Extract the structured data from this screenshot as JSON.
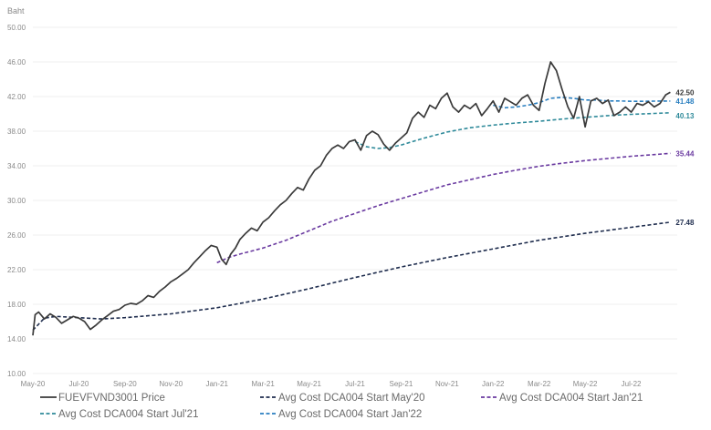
{
  "chart_data": {
    "type": "line",
    "ylabel": "Baht",
    "ylim": [
      10,
      50
    ],
    "yticks": [
      "10.00",
      "14.00",
      "18.00",
      "22.00",
      "26.00",
      "30.00",
      "34.00",
      "38.00",
      "42.00",
      "46.00",
      "50.00"
    ],
    "ytick_values": [
      10,
      14,
      18,
      22,
      26,
      30,
      34,
      38,
      42,
      46,
      50
    ],
    "xrange": [
      0,
      28
    ],
    "xticks": [
      "May-20",
      "Jul-20",
      "Sep-20",
      "Nov-20",
      "Jan-21",
      "Mar-21",
      "May-21",
      "Jul-21",
      "Sep-21",
      "Nov-21",
      "Jan-22",
      "Mar-22",
      "May-22",
      "Jul-22"
    ],
    "xtick_values": [
      0,
      2,
      4,
      6,
      8,
      10,
      12,
      14,
      16,
      18,
      20,
      22,
      24,
      26
    ],
    "series": [
      {
        "name": "FUEVFVND3001 Price",
        "color": "#3a3a3a",
        "dash": "solid",
        "end_label": "42.50",
        "x": [
          0,
          0.1,
          0.25,
          0.5,
          0.75,
          1,
          1.25,
          1.5,
          1.75,
          2,
          2.25,
          2.5,
          2.75,
          3,
          3.25,
          3.5,
          3.75,
          4,
          4.25,
          4.5,
          4.75,
          5,
          5.25,
          5.5,
          5.75,
          6,
          6.25,
          6.5,
          6.75,
          7,
          7.25,
          7.5,
          7.75,
          8,
          8.2,
          8.4,
          8.6,
          8.8,
          9,
          9.25,
          9.5,
          9.75,
          10,
          10.25,
          10.5,
          10.75,
          11,
          11.25,
          11.5,
          11.75,
          12,
          12.25,
          12.5,
          12.75,
          13,
          13.25,
          13.5,
          13.75,
          14,
          14.25,
          14.5,
          14.75,
          15,
          15.25,
          15.5,
          15.75,
          16,
          16.25,
          16.5,
          16.75,
          17,
          17.25,
          17.5,
          17.75,
          18,
          18.25,
          18.5,
          18.75,
          19,
          19.25,
          19.5,
          19.75,
          20,
          20.25,
          20.5,
          20.75,
          21,
          21.25,
          21.5,
          21.75,
          22,
          22.25,
          22.5,
          22.75,
          23,
          23.25,
          23.5,
          23.75,
          24,
          24.25,
          24.5,
          24.75,
          25,
          25.25,
          25.5,
          25.75,
          26,
          26.25,
          26.5,
          26.75,
          27,
          27.25,
          27.5,
          27.7
        ],
        "y": [
          14.4,
          16.8,
          17.1,
          16.3,
          16.9,
          16.5,
          15.8,
          16.2,
          16.6,
          16.4,
          16.0,
          15.1,
          15.6,
          16.2,
          16.7,
          17.2,
          17.4,
          17.9,
          18.1,
          18.0,
          18.4,
          19.0,
          18.8,
          19.5,
          20.0,
          20.6,
          21.0,
          21.5,
          22.0,
          22.8,
          23.5,
          24.2,
          24.8,
          24.6,
          23.2,
          22.6,
          23.8,
          24.5,
          25.5,
          26.2,
          26.8,
          26.5,
          27.5,
          28.0,
          28.8,
          29.5,
          30.0,
          30.8,
          31.5,
          31.2,
          32.5,
          33.5,
          34.0,
          35.2,
          36.0,
          36.4,
          36.0,
          36.8,
          37.0,
          35.8,
          37.5,
          38.0,
          37.6,
          36.5,
          35.8,
          36.6,
          37.2,
          37.8,
          39.5,
          40.2,
          39.6,
          41.0,
          40.6,
          41.8,
          42.4,
          40.8,
          40.2,
          41.0,
          40.6,
          41.2,
          39.8,
          40.6,
          41.5,
          40.2,
          41.8,
          41.4,
          41.0,
          41.8,
          42.2,
          41.0,
          40.4,
          43.5,
          46.0,
          45.0,
          42.8,
          40.8,
          39.5,
          42.0,
          38.5,
          41.5,
          41.8,
          41.2,
          41.6,
          39.8,
          40.2,
          40.8,
          40.2,
          41.2,
          41.0,
          41.4,
          40.8,
          41.2,
          42.2,
          42.5
        ]
      },
      {
        "name": "Avg Cost DCA004 Start May'20",
        "color": "#1f2d4e",
        "dash": "dashed",
        "end_label": "27.48",
        "x": [
          0,
          0.5,
          1,
          2,
          3,
          4,
          6,
          8,
          10,
          12,
          14,
          16,
          18,
          20,
          22,
          24,
          26,
          27.7
        ],
        "y": [
          15.0,
          16.4,
          16.6,
          16.45,
          16.3,
          16.45,
          16.9,
          17.6,
          18.6,
          19.8,
          21.1,
          22.3,
          23.4,
          24.4,
          25.4,
          26.2,
          26.9,
          27.48
        ]
      },
      {
        "name": "Avg Cost DCA004 Start Jan'21",
        "color": "#6a3aa0",
        "dash": "dashed",
        "end_label": "35.44",
        "x": [
          8,
          8.5,
          9,
          10,
          11,
          12,
          13,
          14,
          15,
          16,
          17,
          18,
          19,
          20,
          21,
          22,
          23,
          24,
          25,
          26,
          27,
          27.7
        ],
        "y": [
          22.8,
          23.4,
          23.8,
          24.5,
          25.4,
          26.5,
          27.6,
          28.5,
          29.4,
          30.2,
          31.0,
          31.8,
          32.4,
          33.0,
          33.5,
          33.95,
          34.3,
          34.6,
          34.85,
          35.1,
          35.3,
          35.44
        ]
      },
      {
        "name": "Avg Cost DCA004 Start Jul'21",
        "color": "#2f8a9a",
        "dash": "dashed",
        "end_label": "40.13",
        "x": [
          14,
          14.5,
          15,
          15.5,
          16,
          17,
          18,
          19,
          20,
          21,
          22,
          23,
          24,
          25,
          26,
          27,
          27.7
        ],
        "y": [
          36.8,
          36.2,
          36.0,
          36.1,
          36.4,
          37.2,
          37.9,
          38.4,
          38.7,
          38.95,
          39.15,
          39.4,
          39.6,
          39.8,
          39.95,
          40.05,
          40.13
        ]
      },
      {
        "name": "Avg Cost DCA004 Start Jan'22",
        "color": "#2a7fc0",
        "dash": "dashed",
        "end_label": "41.48",
        "x": [
          20,
          20.5,
          21,
          21.5,
          22,
          22.5,
          23,
          23.5,
          24,
          24.5,
          25,
          25.5,
          26,
          26.5,
          27,
          27.7
        ],
        "y": [
          41.0,
          40.7,
          40.8,
          41.0,
          41.3,
          41.8,
          41.9,
          41.8,
          41.6,
          41.6,
          41.5,
          41.5,
          41.45,
          41.45,
          41.47,
          41.48
        ]
      }
    ]
  }
}
